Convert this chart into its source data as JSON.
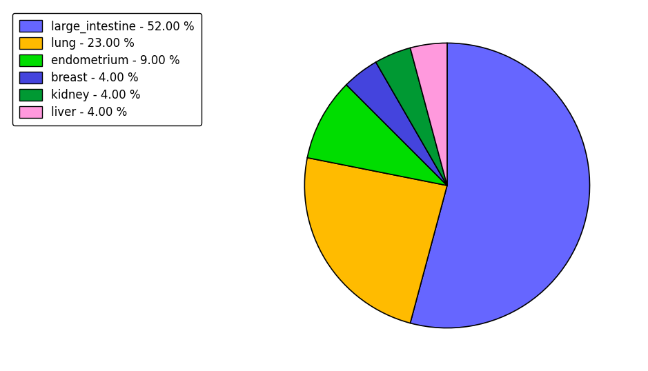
{
  "labels": [
    "large_intestine",
    "lung",
    "endometrium",
    "breast",
    "kidney",
    "liver"
  ],
  "values": [
    52.0,
    23.0,
    9.0,
    4.0,
    4.0,
    4.0
  ],
  "colors": [
    "#6666ff",
    "#ffbb00",
    "#00dd00",
    "#4444dd",
    "#009933",
    "#ff99dd"
  ],
  "legend_labels": [
    "large_intestine - 52.00 %",
    "lung - 23.00 %",
    "endometrium - 9.00 %",
    "breast - 4.00 %",
    "kidney - 4.00 %",
    "liver - 4.00 %"
  ],
  "figsize": [
    9.39,
    5.38
  ],
  "dpi": 100,
  "startangle": 90,
  "legend_fontsize": 12
}
